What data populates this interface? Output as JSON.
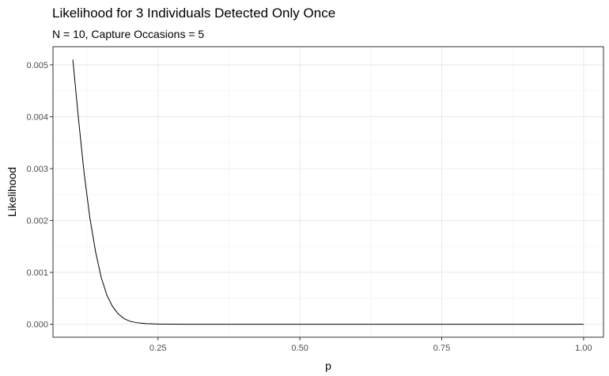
{
  "chart_data": {
    "type": "line",
    "title": "Likelihood for 3 Individuals Detected Only Once",
    "subtitle": "N = 10, Capture Occasions = 5",
    "xlabel": "p",
    "ylabel": "Likelihood",
    "xlim": [
      0.065,
      1.035
    ],
    "ylim": [
      -0.00025,
      0.00535
    ],
    "x_ticks": [
      0.25,
      0.5,
      0.75,
      1.0
    ],
    "x_tick_labels": [
      "0.25",
      "0.50",
      "0.75",
      "1.00"
    ],
    "y_ticks": [
      0,
      0.001,
      0.002,
      0.003,
      0.004,
      0.005
    ],
    "y_tick_labels": [
      "0.000",
      "0.001",
      "0.002",
      "0.003",
      "0.004",
      "0.005"
    ],
    "grid": true,
    "legend": "none",
    "line_color": "#000000",
    "series": [
      {
        "x": [
          0.1,
          0.11,
          0.12,
          0.13,
          0.14,
          0.15,
          0.16,
          0.17,
          0.18,
          0.19,
          0.2,
          0.21,
          0.22,
          0.23,
          0.24,
          0.25,
          0.26,
          0.28,
          0.3,
          0.35,
          0.4,
          0.5,
          0.6,
          0.7,
          0.8,
          0.9,
          1.0
        ],
        "y": [
          0.0051,
          0.00395,
          0.0029,
          0.00205,
          0.0014,
          0.0009,
          0.00056,
          0.00034,
          0.0002,
          0.00011,
          6e-05,
          3.5e-05,
          2e-05,
          1.2e-05,
          7e-06,
          4e-06,
          2.5e-06,
          1e-06,
          4e-07,
          5e-08,
          0,
          0,
          0,
          0,
          0,
          0,
          0
        ]
      }
    ]
  }
}
